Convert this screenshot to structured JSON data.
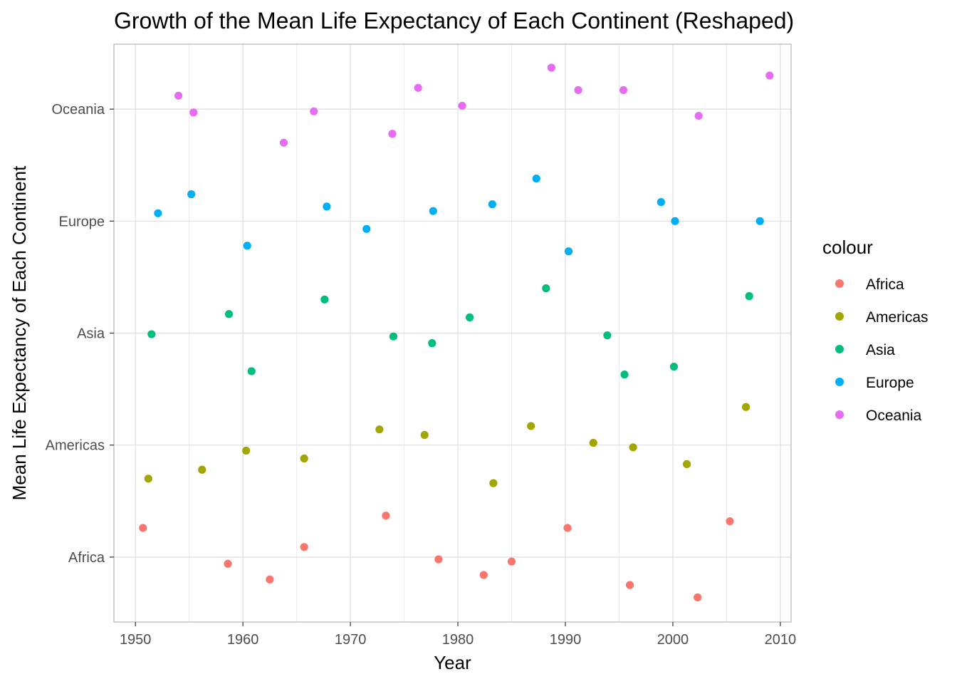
{
  "chart_data": {
    "type": "scatter",
    "title": "Growth of the Mean Life Expectancy of Each Continent (Reshaped)",
    "xlabel": "Year",
    "ylabel": "Mean Life Expectancy of Each Continent",
    "xlim": [
      1948,
      2011
    ],
    "xticks": [
      1950,
      1960,
      1970,
      1980,
      1990,
      2000,
      2010
    ],
    "xtick_labels": [
      "1950",
      "1960",
      "1970",
      "1980",
      "1990",
      "2000",
      "2010"
    ],
    "categories": [
      "Africa",
      "Americas",
      "Asia",
      "Europe",
      "Oceania"
    ],
    "ylim": [
      0.42,
      5.58
    ],
    "grid": true,
    "legend": {
      "title": "colour",
      "position": "right"
    },
    "series": [
      {
        "name": "Africa",
        "color": "#F8766D",
        "points": [
          {
            "x": 1950.7,
            "y": 1.26
          },
          {
            "x": 1958.6,
            "y": 0.94
          },
          {
            "x": 1962.5,
            "y": 0.8
          },
          {
            "x": 1965.7,
            "y": 1.09
          },
          {
            "x": 1973.3,
            "y": 1.37
          },
          {
            "x": 1978.2,
            "y": 0.98
          },
          {
            "x": 1982.4,
            "y": 0.84
          },
          {
            "x": 1985.0,
            "y": 0.96
          },
          {
            "x": 1990.2,
            "y": 1.26
          },
          {
            "x": 1996.0,
            "y": 0.75
          },
          {
            "x": 2002.3,
            "y": 0.64
          },
          {
            "x": 2005.3,
            "y": 1.32
          }
        ]
      },
      {
        "name": "Americas",
        "color": "#A3A500",
        "points": [
          {
            "x": 1951.2,
            "y": 1.7
          },
          {
            "x": 1956.2,
            "y": 1.78
          },
          {
            "x": 1960.3,
            "y": 1.95
          },
          {
            "x": 1965.7,
            "y": 1.88
          },
          {
            "x": 1972.7,
            "y": 2.14
          },
          {
            "x": 1976.9,
            "y": 2.09
          },
          {
            "x": 1983.3,
            "y": 1.66
          },
          {
            "x": 1986.8,
            "y": 2.17
          },
          {
            "x": 1992.6,
            "y": 2.02
          },
          {
            "x": 1996.3,
            "y": 1.98
          },
          {
            "x": 2001.3,
            "y": 1.83
          },
          {
            "x": 2006.8,
            "y": 2.34
          }
        ]
      },
      {
        "name": "Asia",
        "color": "#00BF7D",
        "points": [
          {
            "x": 1951.5,
            "y": 2.99
          },
          {
            "x": 1958.7,
            "y": 3.17
          },
          {
            "x": 1960.8,
            "y": 2.66
          },
          {
            "x": 1967.6,
            "y": 3.3
          },
          {
            "x": 1974.0,
            "y": 2.97
          },
          {
            "x": 1977.6,
            "y": 2.91
          },
          {
            "x": 1981.1,
            "y": 3.14
          },
          {
            "x": 1988.2,
            "y": 3.4
          },
          {
            "x": 1993.9,
            "y": 2.98
          },
          {
            "x": 1995.5,
            "y": 2.63
          },
          {
            "x": 2000.1,
            "y": 2.7
          },
          {
            "x": 2007.1,
            "y": 3.33
          }
        ]
      },
      {
        "name": "Europe",
        "color": "#00B0F6",
        "points": [
          {
            "x": 1952.1,
            "y": 4.07
          },
          {
            "x": 1955.2,
            "y": 4.24
          },
          {
            "x": 1960.4,
            "y": 3.78
          },
          {
            "x": 1967.8,
            "y": 4.13
          },
          {
            "x": 1971.5,
            "y": 3.93
          },
          {
            "x": 1977.7,
            "y": 4.09
          },
          {
            "x": 1983.2,
            "y": 4.15
          },
          {
            "x": 1987.3,
            "y": 4.38
          },
          {
            "x": 1990.3,
            "y": 3.73
          },
          {
            "x": 1998.9,
            "y": 4.17
          },
          {
            "x": 2000.2,
            "y": 4.0
          },
          {
            "x": 2008.1,
            "y": 4.0
          }
        ]
      },
      {
        "name": "Oceania",
        "color": "#E76BF3",
        "points": [
          {
            "x": 1954.0,
            "y": 5.12
          },
          {
            "x": 1955.4,
            "y": 4.97
          },
          {
            "x": 1963.8,
            "y": 4.7
          },
          {
            "x": 1966.6,
            "y": 4.98
          },
          {
            "x": 1973.9,
            "y": 4.78
          },
          {
            "x": 1976.3,
            "y": 5.19
          },
          {
            "x": 1980.4,
            "y": 5.03
          },
          {
            "x": 1988.7,
            "y": 5.37
          },
          {
            "x": 1991.2,
            "y": 5.17
          },
          {
            "x": 1995.4,
            "y": 5.17
          },
          {
            "x": 2002.4,
            "y": 4.94
          },
          {
            "x": 2009.0,
            "y": 5.3
          }
        ]
      }
    ]
  }
}
